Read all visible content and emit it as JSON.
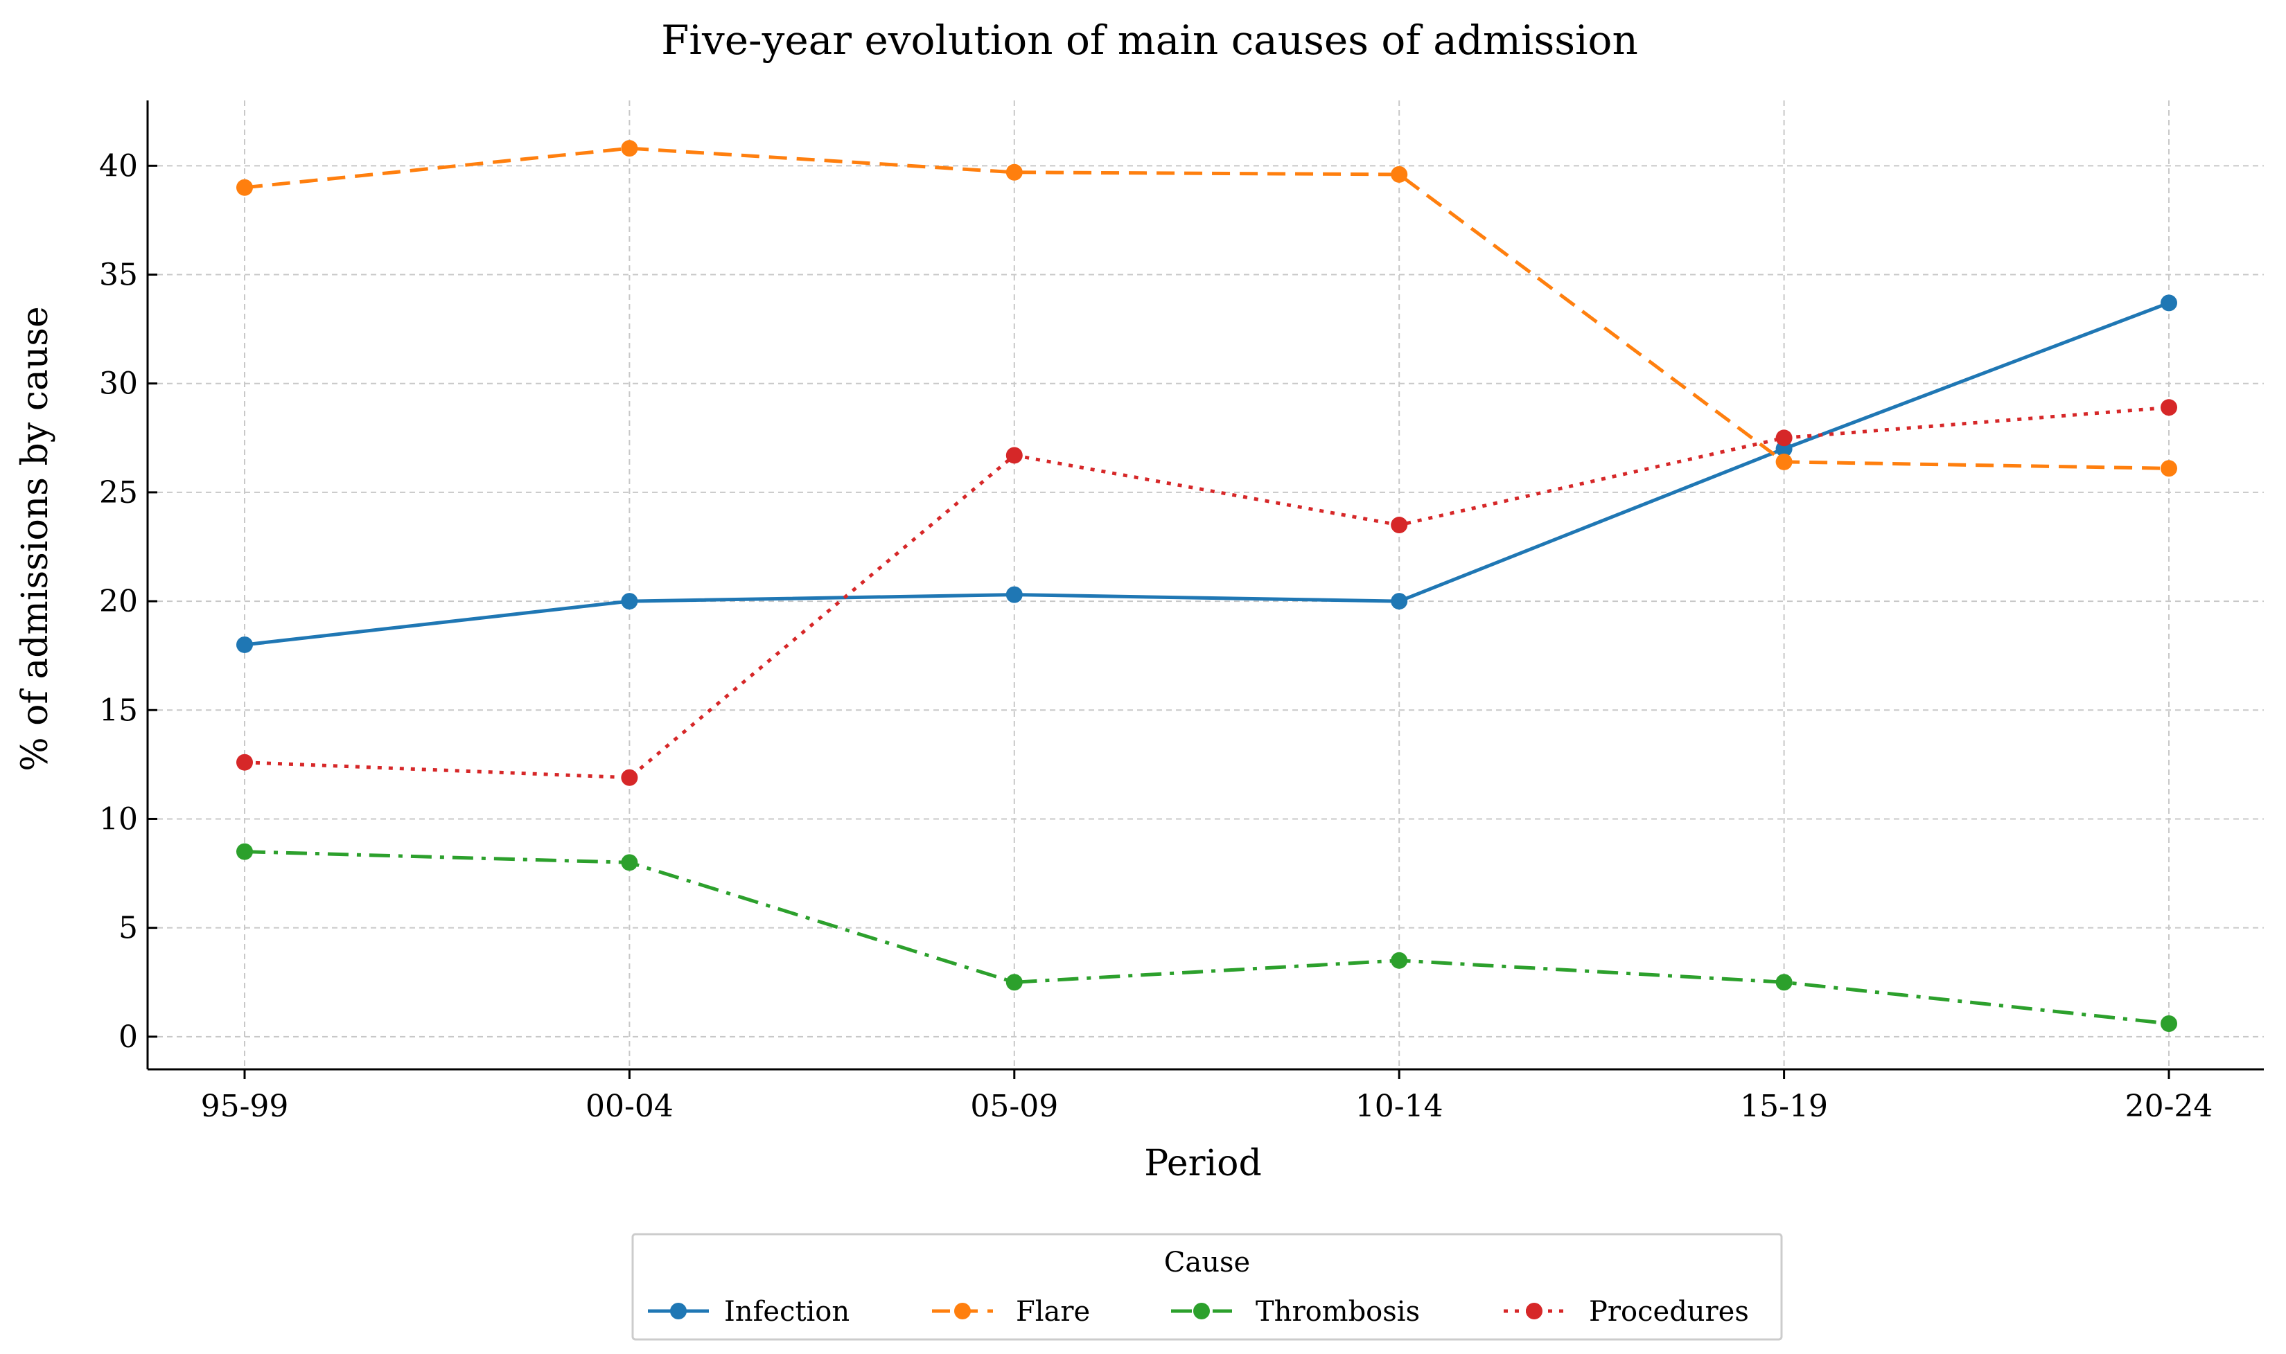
{
  "chart_data": {
    "type": "line",
    "title": "Five-year evolution of main causes of admission",
    "xlabel": "Period",
    "ylabel": "% of admissions by cause",
    "categories": [
      "95-99",
      "00-04",
      "05-09",
      "10-14",
      "15-19",
      "20-24"
    ],
    "ylim": [
      -1.5,
      43
    ],
    "yticks": [
      0,
      5,
      10,
      15,
      20,
      25,
      30,
      35,
      40
    ],
    "grid": true,
    "legend": {
      "title": "Cause",
      "placement": "bottom-center"
    },
    "series": [
      {
        "name": "Infection",
        "values": [
          18.0,
          20.0,
          20.3,
          20.0,
          27.0,
          33.7
        ],
        "color": "#1f77b4",
        "linestyle": "solid"
      },
      {
        "name": "Flare",
        "values": [
          39.0,
          40.8,
          39.7,
          39.6,
          26.4,
          26.1
        ],
        "color": "#ff7f0e",
        "linestyle": "dashed"
      },
      {
        "name": "Thrombosis",
        "values": [
          8.5,
          8.0,
          2.5,
          3.5,
          2.5,
          0.6
        ],
        "color": "#2ca02c",
        "linestyle": "dashdot"
      },
      {
        "name": "Procedures",
        "values": [
          12.6,
          11.9,
          26.7,
          23.5,
          27.5,
          28.9
        ],
        "color": "#d62728",
        "linestyle": "dotted"
      }
    ]
  }
}
